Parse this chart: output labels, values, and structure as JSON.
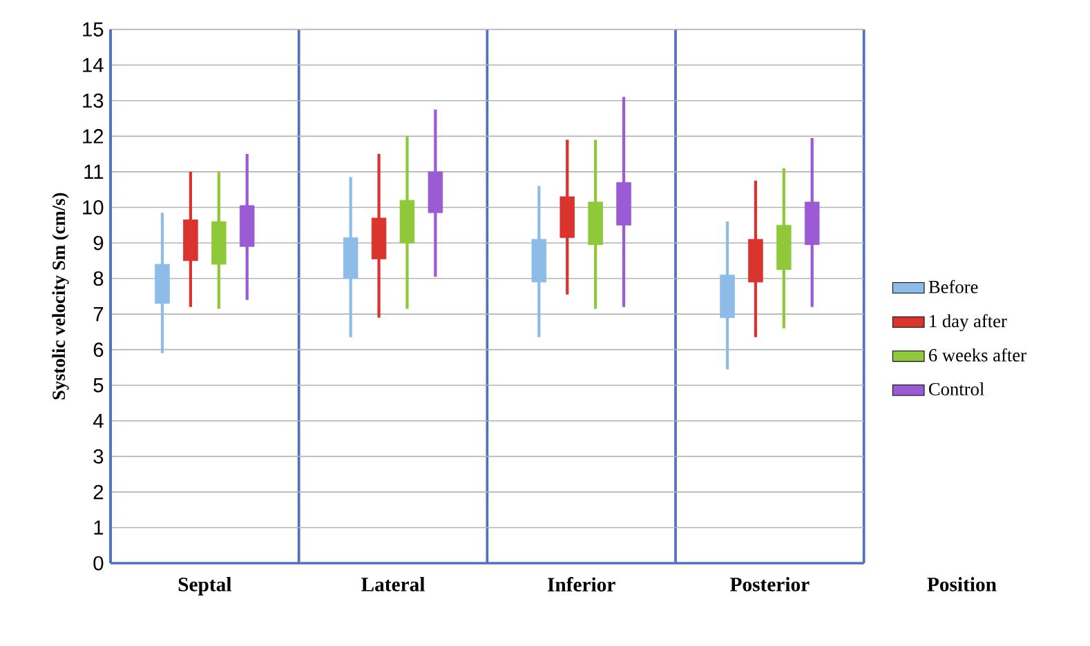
{
  "chart_data": {
    "type": "candlestick",
    "ylabel": "Systolic velocity Sm (cm/s)",
    "xlabel": "Position",
    "categories": [
      "Septal",
      "Lateral",
      "Inferior",
      "Posterior"
    ],
    "ylim": [
      0,
      15
    ],
    "yticks": [
      0,
      1,
      2,
      3,
      4,
      5,
      6,
      7,
      8,
      9,
      10,
      11,
      12,
      13,
      14,
      15
    ],
    "grid": true,
    "legend": "right",
    "series": [
      {
        "name": "Before",
        "color": "#8dbce8",
        "ohlc": [
          [
            7.3,
            9.85,
            5.9,
            8.4
          ],
          [
            8.0,
            10.85,
            6.35,
            9.15
          ],
          [
            7.9,
            10.6,
            6.35,
            9.1
          ],
          [
            6.9,
            9.6,
            5.45,
            8.1
          ]
        ]
      },
      {
        "name": "1 day after",
        "color": "#d9342e",
        "ohlc": [
          [
            8.5,
            11.0,
            7.2,
            9.65
          ],
          [
            8.55,
            11.5,
            6.9,
            9.7
          ],
          [
            9.15,
            11.9,
            7.55,
            10.3
          ],
          [
            7.9,
            10.75,
            6.35,
            9.1
          ]
        ]
      },
      {
        "name": "6 weeks after",
        "color": "#8fc93a",
        "ohlc": [
          [
            8.4,
            11.0,
            7.15,
            9.6
          ],
          [
            9.0,
            12.0,
            7.15,
            10.2
          ],
          [
            8.95,
            11.9,
            7.15,
            10.15
          ],
          [
            8.25,
            11.1,
            6.6,
            9.5
          ]
        ]
      },
      {
        "name": "Control",
        "color": "#9a5bd4",
        "ohlc": [
          [
            8.9,
            11.5,
            7.4,
            10.05
          ],
          [
            9.85,
            12.75,
            8.05,
            11.0
          ],
          [
            9.5,
            13.1,
            7.2,
            10.7
          ],
          [
            8.95,
            11.95,
            7.2,
            10.15
          ]
        ]
      }
    ]
  }
}
